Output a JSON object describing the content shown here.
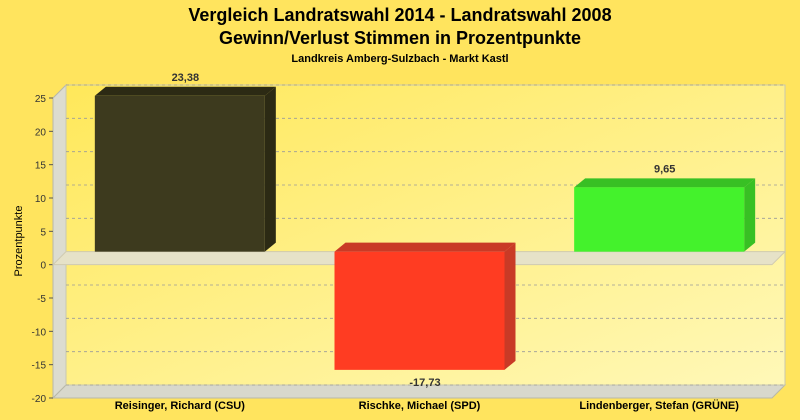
{
  "chart_data": {
    "type": "bar",
    "title": "Vergleich Landratswahl 2014 - Landratswahl 2008",
    "title2": "Gewinn/Verlust Stimmen in Prozentpunkte",
    "subtitle": "Landkreis Amberg-Sulzbach - Markt Kastl",
    "ylabel": "Prozentpunkte",
    "xlabel": "",
    "ylim": [
      -20,
      25
    ],
    "yticks": [
      25,
      20,
      15,
      10,
      5,
      0,
      -5,
      -10,
      -15,
      -20
    ],
    "grid": true,
    "categories": [
      "Reisinger, Richard (CSU)",
      "Rischke, Michael (SPD)",
      "Lindenberger, Stefan (GRÜNE)"
    ],
    "values": [
      23.38,
      -17.73,
      9.65
    ],
    "value_labels": [
      "23,38",
      "-17,73",
      "9,65"
    ],
    "colors": [
      "#3d3a1e",
      "#ff3c22",
      "#44f22c"
    ],
    "side_colors": [
      "#2c2a14",
      "#c93a26",
      "#38c024"
    ],
    "top_colors": [
      "#2c2a14",
      "#c93a26",
      "#38c024"
    ]
  }
}
